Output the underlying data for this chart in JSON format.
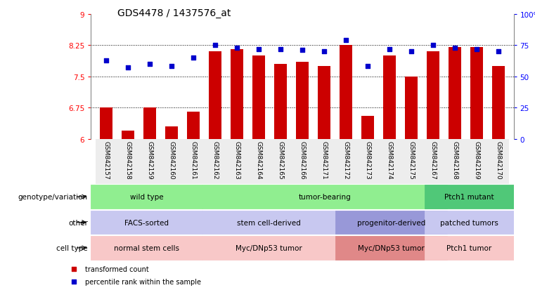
{
  "title": "GDS4478 / 1437576_at",
  "samples": [
    "GSM842157",
    "GSM842158",
    "GSM842159",
    "GSM842160",
    "GSM842161",
    "GSM842162",
    "GSM842163",
    "GSM842164",
    "GSM842165",
    "GSM842166",
    "GSM842171",
    "GSM842172",
    "GSM842173",
    "GSM842174",
    "GSM842175",
    "GSM842167",
    "GSM842168",
    "GSM842169",
    "GSM842170"
  ],
  "bar_values": [
    6.75,
    6.2,
    6.75,
    6.3,
    6.65,
    8.1,
    8.15,
    8.0,
    7.8,
    7.85,
    7.75,
    8.25,
    6.55,
    8.0,
    7.5,
    8.1,
    8.2,
    8.2,
    7.75
  ],
  "scatter_values": [
    63,
    57,
    60,
    58,
    65,
    75,
    73,
    72,
    72,
    71,
    70,
    79,
    58,
    72,
    70,
    75,
    73,
    72,
    70
  ],
  "ylim_left": [
    6,
    9
  ],
  "ylim_right": [
    0,
    100
  ],
  "yticks_left": [
    6,
    6.75,
    7.5,
    8.25,
    9
  ],
  "yticks_right": [
    0,
    25,
    50,
    75,
    100
  ],
  "ytick_labels_left": [
    "6",
    "6.75",
    "7.5",
    "8.25",
    "9"
  ],
  "ytick_labels_right": [
    "0",
    "25",
    "50",
    "75",
    "100%"
  ],
  "hlines": [
    6.75,
    7.5,
    8.25
  ],
  "bar_color": "#cc0000",
  "scatter_color": "#0000cc",
  "bar_width": 0.6,
  "annotation_rows": [
    {
      "label": "genotype/variation",
      "segments": [
        {
          "text": "wild type",
          "start": 0,
          "end": 4,
          "color": "#90ee90"
        },
        {
          "text": "tumor-bearing",
          "start": 5,
          "end": 15,
          "color": "#90ee90"
        },
        {
          "text": "Ptch1 mutant",
          "start": 15,
          "end": 18,
          "color": "#50c878"
        }
      ]
    },
    {
      "label": "other",
      "segments": [
        {
          "text": "FACS-sorted",
          "start": 0,
          "end": 4,
          "color": "#c8c8f0"
        },
        {
          "text": "stem cell-derived",
          "start": 5,
          "end": 10,
          "color": "#c8c8f0"
        },
        {
          "text": "progenitor-derived",
          "start": 11,
          "end": 15,
          "color": "#9898d8"
        },
        {
          "text": "patched tumors",
          "start": 15,
          "end": 18,
          "color": "#c8c8f0"
        }
      ]
    },
    {
      "label": "cell type",
      "segments": [
        {
          "text": "normal stem cells",
          "start": 0,
          "end": 4,
          "color": "#f8c8c8"
        },
        {
          "text": "Myc/DNp53 tumor",
          "start": 5,
          "end": 10,
          "color": "#f8c8c8"
        },
        {
          "text": "Myc/DNp53 tumor",
          "start": 11,
          "end": 15,
          "color": "#e08888"
        },
        {
          "text": "Ptch1 tumor",
          "start": 15,
          "end": 18,
          "color": "#f8c8c8"
        }
      ]
    }
  ],
  "legend_items": [
    {
      "label": "transformed count",
      "color": "#cc0000",
      "marker": "s"
    },
    {
      "label": "percentile rank within the sample",
      "color": "#0000cc",
      "marker": "s"
    }
  ],
  "title_fontsize": 10,
  "tick_fontsize": 7.5,
  "label_fontsize": 7.5,
  "annotation_fontsize": 7.5,
  "xtick_fontsize": 6.5
}
